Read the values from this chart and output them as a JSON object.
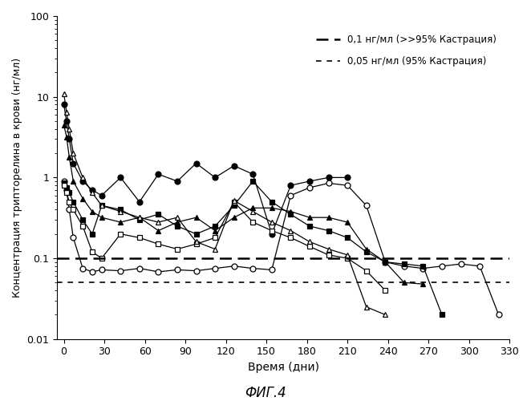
{
  "title": "ФИГ.4",
  "xlabel": "Время (дни)",
  "ylabel": "Концентрация трипторелина в крови (нг/мл)",
  "hline1_val": 0.1,
  "hline1_label": "0,1 нг/мл (>>95% Кастрация)",
  "hline2_val": 0.05,
  "hline2_label": "0,05 нг/мл (95% Кастрация)",
  "xlim": [
    -5,
    330
  ],
  "ylim": [
    0.01,
    100
  ],
  "xticks": [
    0,
    30,
    60,
    90,
    120,
    150,
    180,
    210,
    240,
    270,
    300,
    330
  ],
  "series": [
    {
      "name": "filled_circle",
      "marker": "o",
      "fillstyle": "full",
      "color": "black",
      "x": [
        0,
        2,
        4,
        7,
        14,
        21,
        28,
        42,
        56,
        70,
        84,
        98,
        112,
        126,
        140,
        154,
        168,
        182,
        196,
        210
      ],
      "y": [
        8.0,
        5.0,
        3.0,
        1.5,
        0.9,
        0.7,
        0.6,
        1.0,
        0.5,
        1.1,
        0.9,
        1.5,
        1.0,
        1.4,
        1.1,
        0.2,
        0.8,
        0.9,
        1.0,
        1.0
      ]
    },
    {
      "name": "open_circle",
      "marker": "o",
      "fillstyle": "none",
      "color": "black",
      "x": [
        0,
        2,
        4,
        7,
        14,
        21,
        28,
        42,
        56,
        70,
        84,
        98,
        112,
        126,
        140,
        154,
        168,
        182,
        196,
        210,
        224,
        238,
        252,
        266,
        280,
        294,
        308,
        322
      ],
      "y": [
        0.9,
        0.7,
        0.4,
        0.18,
        0.075,
        0.068,
        0.072,
        0.07,
        0.075,
        0.068,
        0.072,
        0.07,
        0.075,
        0.08,
        0.075,
        0.072,
        0.6,
        0.75,
        0.85,
        0.8,
        0.45,
        0.09,
        0.08,
        0.075,
        0.08,
        0.085,
        0.08,
        0.02
      ]
    },
    {
      "name": "filled_square",
      "marker": "s",
      "fillstyle": "full",
      "color": "black",
      "x": [
        0,
        2,
        4,
        7,
        14,
        21,
        28,
        42,
        56,
        70,
        84,
        98,
        112,
        126,
        140,
        154,
        168,
        182,
        196,
        210,
        224,
        238,
        252,
        266,
        280
      ],
      "y": [
        0.85,
        0.75,
        0.65,
        0.5,
        0.3,
        0.2,
        0.45,
        0.4,
        0.3,
        0.35,
        0.25,
        0.2,
        0.25,
        0.45,
        0.9,
        0.5,
        0.35,
        0.25,
        0.22,
        0.18,
        0.12,
        0.09,
        0.085,
        0.08,
        0.02
      ]
    },
    {
      "name": "open_square",
      "marker": "s",
      "fillstyle": "none",
      "color": "black",
      "x": [
        0,
        2,
        4,
        7,
        14,
        21,
        28,
        42,
        56,
        70,
        84,
        98,
        112,
        126,
        140,
        154,
        168,
        182,
        196,
        210,
        224,
        238
      ],
      "y": [
        0.8,
        0.65,
        0.5,
        0.4,
        0.25,
        0.12,
        0.1,
        0.2,
        0.18,
        0.15,
        0.13,
        0.15,
        0.18,
        0.5,
        0.28,
        0.22,
        0.18,
        0.14,
        0.11,
        0.1,
        0.07,
        0.04
      ]
    },
    {
      "name": "filled_triangle",
      "marker": "^",
      "fillstyle": "full",
      "color": "black",
      "x": [
        0,
        2,
        4,
        7,
        14,
        21,
        28,
        42,
        56,
        70,
        84,
        98,
        112,
        126,
        140,
        154,
        168,
        182,
        196,
        210,
        224,
        238,
        252,
        266
      ],
      "y": [
        4.5,
        3.2,
        1.8,
        0.9,
        0.55,
        0.38,
        0.32,
        0.28,
        0.32,
        0.22,
        0.28,
        0.32,
        0.22,
        0.32,
        0.42,
        0.42,
        0.38,
        0.32,
        0.32,
        0.28,
        0.13,
        0.09,
        0.05,
        0.048
      ]
    },
    {
      "name": "open_triangle",
      "marker": "^",
      "fillstyle": "none",
      "color": "black",
      "x": [
        0,
        2,
        4,
        7,
        14,
        21,
        28,
        42,
        56,
        70,
        84,
        98,
        112,
        126,
        140,
        154,
        168,
        182,
        196,
        210,
        224,
        238
      ],
      "y": [
        11.0,
        6.5,
        4.0,
        2.0,
        1.0,
        0.65,
        0.45,
        0.38,
        0.32,
        0.28,
        0.32,
        0.16,
        0.13,
        0.52,
        0.38,
        0.28,
        0.22,
        0.16,
        0.13,
        0.11,
        0.025,
        0.02
      ]
    }
  ]
}
